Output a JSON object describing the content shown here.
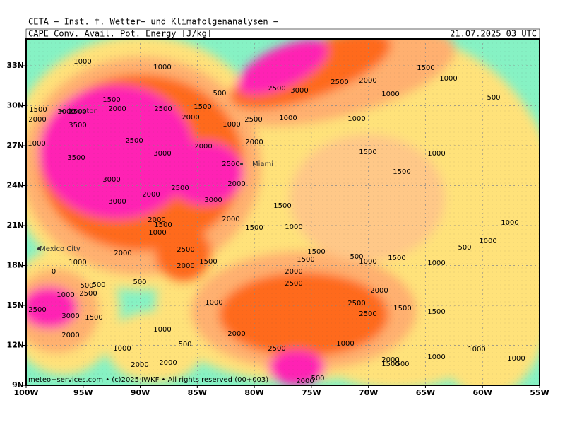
{
  "header": {
    "title": "CETA − Inst. f. Wetter− und Klimafolgenanalysen −",
    "field": "CAPE_Conv._Avail._Pot._Energy_[J/kg]",
    "valid_time": "21.07.2025 03 UTC"
  },
  "lat_labels": [
    "33N",
    "30N",
    "27N",
    "24N",
    "21N",
    "18N",
    "15N",
    "12N",
    "9N"
  ],
  "lon_labels": [
    "100W",
    "95W",
    "90W",
    "85W",
    "80W",
    "75W",
    "70W",
    "65W",
    "60W",
    "55W"
  ],
  "cities": [
    "Houston",
    "Miami",
    "Mexico City"
  ],
  "contour_labels": [
    "1000",
    "1000",
    "2500",
    "3000",
    "2500",
    "2000",
    "1500",
    "1000",
    "1000",
    "500",
    "500",
    "1500",
    "2000",
    "1500",
    "3000",
    "2500",
    "2000",
    "3500",
    "2500",
    "1500",
    "2000",
    "1000",
    "2500",
    "1000",
    "1000",
    "2000",
    "2500",
    "1000",
    "3000",
    "2000",
    "1500",
    "1000",
    "3500",
    "2500",
    "1500",
    "3000",
    "2500",
    "2000",
    "2000",
    "3000",
    "3000",
    "1500",
    "2000",
    "1500",
    "2000",
    "1500",
    "1000",
    "1000",
    "1000",
    "1000",
    "500",
    "2500",
    "2000",
    "1500",
    "500",
    "1500",
    "1000",
    "1500",
    "1000",
    "1500",
    "2000",
    "1000",
    "2000",
    "500",
    "500",
    "500",
    "2500",
    "1000",
    "2500",
    "2000",
    "1000",
    "2500",
    "3000",
    "1500",
    "2500",
    "2500",
    "1500",
    "1500",
    "2000",
    "1000",
    "2000",
    "1000",
    "1000",
    "500",
    "2500",
    "2000",
    "1000",
    "1000",
    "1000",
    "2000",
    "2000",
    "1500",
    "500",
    "0",
    "500",
    "2000"
  ],
  "footer": "meteo−services.com • (c)2025 IWKF • All rights reserved (00+003)"
}
